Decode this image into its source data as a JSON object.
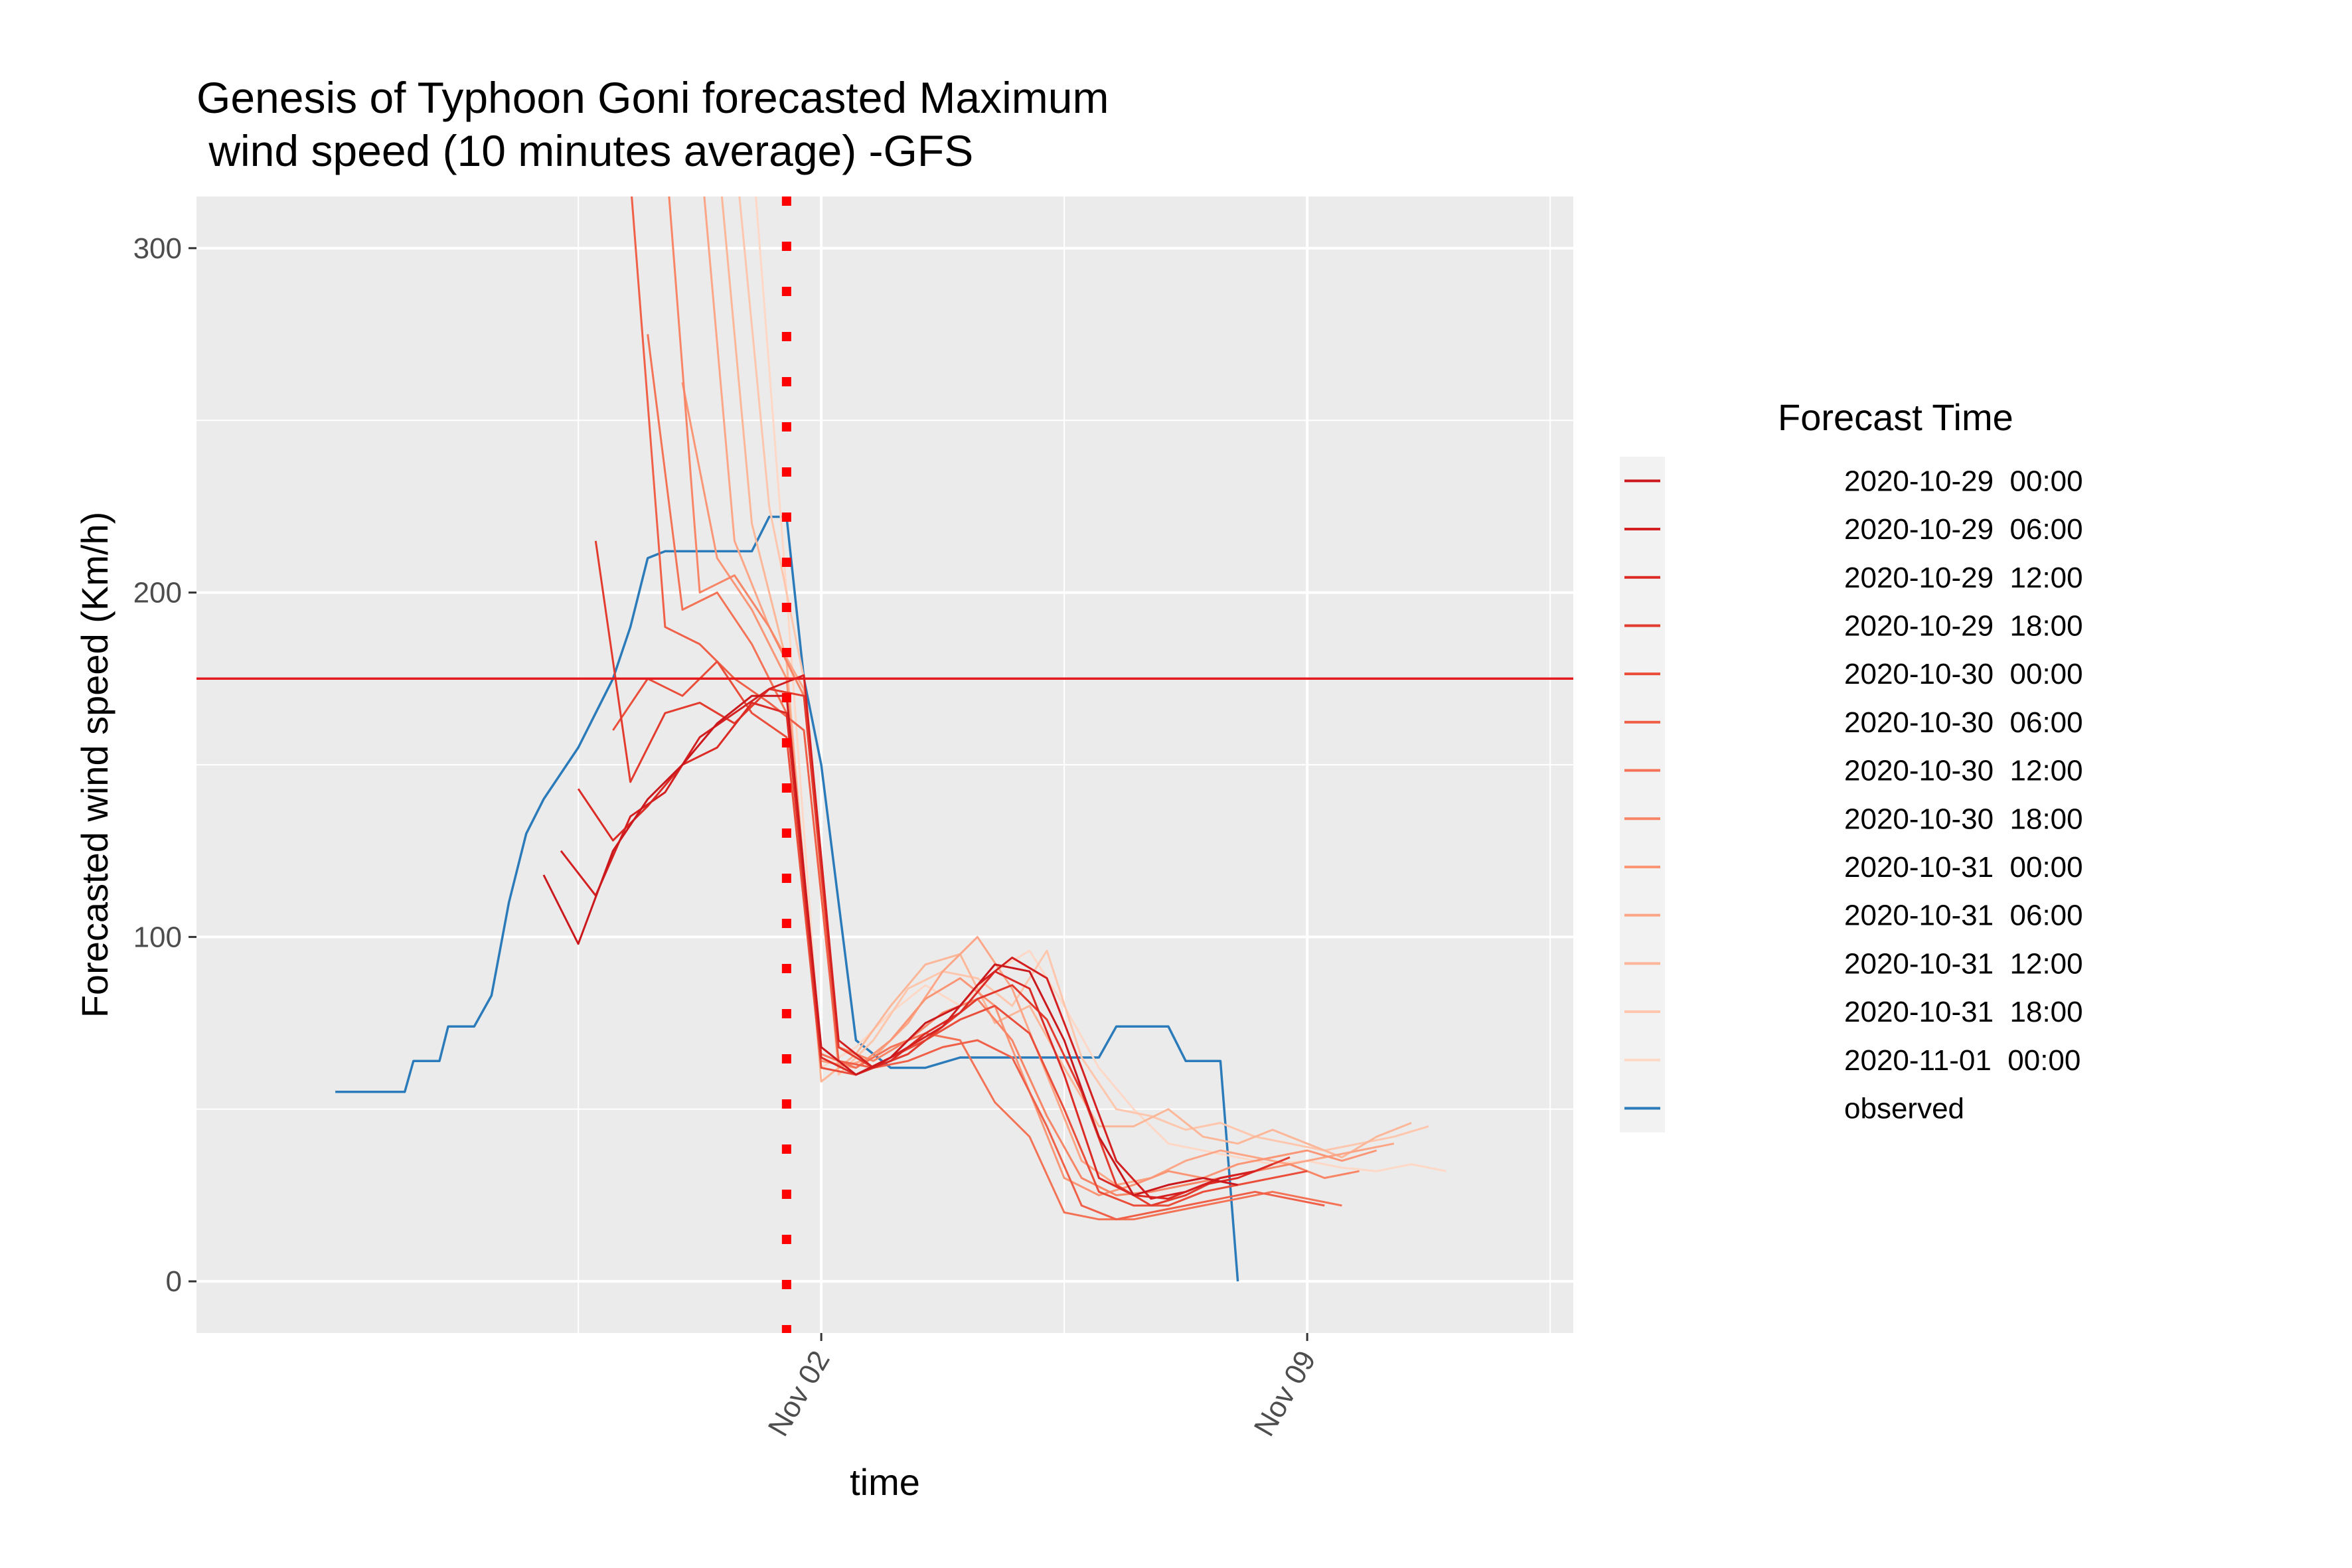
{
  "chart_data": {
    "type": "line",
    "title_line1": "Genesis of Typhoon Goni forecasted Maximum",
    "title_line2": " wind speed (10 minutes average) -GFS",
    "xlabel": "time",
    "ylabel": "Forecasted wind speed (Km/h)",
    "x_range": [
      "2020-10-24T00:00",
      "2020-11-12T20:00"
    ],
    "ylim": [
      -15,
      315
    ],
    "y_ticks": [
      0,
      100,
      200,
      300
    ],
    "x_ticks": [
      {
        "label": "Nov 02",
        "date": "2020-11-02T00:00"
      },
      {
        "label": "Nov 09",
        "date": "2020-11-09T00:00"
      }
    ],
    "grid": true,
    "legend_position": "right",
    "legend_title": "Forecast Time",
    "reference_lines": [
      {
        "orientation": "horizontal",
        "y": 175,
        "color": "#e41a1c",
        "style": "solid"
      },
      {
        "orientation": "vertical",
        "x": "2020-11-01T12:00",
        "color": "#ff0000",
        "style": "dotted"
      }
    ],
    "series": [
      {
        "name": "2020-10-29  00:00",
        "color": "#cb181d",
        "x": [
          "2020-10-29T00:00",
          "2020-10-29T12:00",
          "2020-10-30T00:00",
          "2020-10-30T12:00",
          "2020-10-31T00:00",
          "2020-10-31T12:00",
          "2020-11-01T00:00",
          "2020-11-01T12:00",
          "2020-11-02T00:00",
          "2020-11-02T12:00",
          "2020-11-03T00:00",
          "2020-11-03T12:00",
          "2020-11-04T00:00",
          "2020-11-04T12:00",
          "2020-11-05T00:00",
          "2020-11-05T12:00",
          "2020-11-06T00:00",
          "2020-11-06T12:00",
          "2020-11-07T00:00",
          "2020-11-07T12:00",
          "2020-11-08T00:00"
        ],
        "values": [
          118,
          98,
          125,
          140,
          150,
          162,
          170,
          170,
          68,
          60,
          65,
          75,
          80,
          92,
          90,
          70,
          42,
          25,
          28,
          30,
          28
        ]
      },
      {
        "name": "2020-10-29  06:00",
        "color": "#d42020",
        "x": [
          "2020-10-29T06:00",
          "2020-10-29T18:00",
          "2020-10-30T06:00",
          "2020-10-30T18:00",
          "2020-10-31T06:00",
          "2020-10-31T18:00",
          "2020-11-01T06:00",
          "2020-11-01T18:00",
          "2020-11-02T06:00",
          "2020-11-02T18:00",
          "2020-11-03T06:00",
          "2020-11-03T18:00",
          "2020-11-04T06:00",
          "2020-11-04T18:00",
          "2020-11-05T06:00",
          "2020-11-05T18:00",
          "2020-11-06T06:00",
          "2020-11-06T18:00",
          "2020-11-07T06:00",
          "2020-11-07T18:00",
          "2020-11-08T06:00"
        ],
        "values": [
          125,
          112,
          135,
          142,
          158,
          165,
          172,
          176,
          70,
          62,
          68,
          74,
          86,
          94,
          88,
          62,
          35,
          24,
          26,
          30,
          32
        ]
      },
      {
        "name": "2020-10-29  12:00",
        "color": "#dc2a25",
        "x": [
          "2020-10-29T12:00",
          "2020-10-30T00:00",
          "2020-10-30T12:00",
          "2020-10-31T00:00",
          "2020-10-31T12:00",
          "2020-11-01T00:00",
          "2020-11-01T12:00",
          "2020-11-02T00:00",
          "2020-11-02T12:00",
          "2020-11-03T00:00",
          "2020-11-03T12:00",
          "2020-11-04T00:00",
          "2020-11-04T12:00",
          "2020-11-05T00:00",
          "2020-11-05T12:00",
          "2020-11-06T00:00",
          "2020-11-06T12:00",
          "2020-11-07T00:00",
          "2020-11-07T12:00",
          "2020-11-08T00:00",
          "2020-11-08T12:00"
        ],
        "values": [
          143,
          128,
          138,
          150,
          155,
          168,
          165,
          65,
          60,
          64,
          72,
          78,
          90,
          85,
          60,
          30,
          25,
          24,
          28,
          30,
          34
        ]
      },
      {
        "name": "2020-10-29  18:00",
        "color": "#e33b2e",
        "x": [
          "2020-10-29T18:00",
          "2020-10-30T06:00",
          "2020-10-30T18:00",
          "2020-10-31T06:00",
          "2020-10-31T18:00",
          "2020-11-01T06:00",
          "2020-11-01T18:00",
          "2020-11-02T06:00",
          "2020-11-02T18:00",
          "2020-11-03T06:00",
          "2020-11-03T18:00",
          "2020-11-04T06:00",
          "2020-11-04T18:00",
          "2020-11-05T06:00",
          "2020-11-05T18:00",
          "2020-11-06T06:00",
          "2020-11-06T18:00",
          "2020-11-07T06:00",
          "2020-11-07T18:00",
          "2020-11-08T06:00",
          "2020-11-08T18:00"
        ],
        "values": [
          215,
          145,
          165,
          168,
          162,
          172,
          170,
          68,
          62,
          66,
          74,
          82,
          86,
          76,
          55,
          28,
          22,
          25,
          30,
          32,
          36
        ]
      },
      {
        "name": "2020-10-30  00:00",
        "color": "#ea4e3a",
        "x": [
          "2020-10-30T00:00",
          "2020-10-30T12:00",
          "2020-10-31T00:00",
          "2020-10-31T12:00",
          "2020-11-01T00:00",
          "2020-11-01T12:00",
          "2020-11-02T00:00",
          "2020-11-02T12:00",
          "2020-11-03T00:00",
          "2020-11-03T12:00",
          "2020-11-04T00:00",
          "2020-11-04T12:00",
          "2020-11-05T00:00",
          "2020-11-05T12:00",
          "2020-11-06T00:00",
          "2020-11-06T12:00",
          "2020-11-07T00:00",
          "2020-11-07T12:00",
          "2020-11-08T00:00",
          "2020-11-08T12:00",
          "2020-11-09T00:00"
        ],
        "values": [
          160,
          175,
          170,
          180,
          165,
          158,
          62,
          60,
          65,
          70,
          76,
          80,
          72,
          50,
          26,
          22,
          22,
          26,
          28,
          30,
          32
        ]
      },
      {
        "name": "2020-10-30  06:00",
        "color": "#f06048",
        "x": [
          "2020-10-30T06:00",
          "2020-10-30T18:00",
          "2020-10-31T06:00",
          "2020-10-31T18:00",
          "2020-11-01T06:00",
          "2020-11-01T18:00",
          "2020-11-02T06:00",
          "2020-11-02T18:00",
          "2020-11-03T06:00",
          "2020-11-03T18:00",
          "2020-11-04T06:00",
          "2020-11-04T18:00",
          "2020-11-05T06:00",
          "2020-11-05T18:00",
          "2020-11-06T06:00",
          "2020-11-06T18:00",
          "2020-11-07T06:00",
          "2020-11-07T18:00",
          "2020-11-08T06:00",
          "2020-11-08T18:00",
          "2020-11-09T06:00"
        ],
        "values": [
          320,
          190,
          185,
          175,
          168,
          160,
          64,
          62,
          64,
          68,
          70,
          65,
          45,
          22,
          18,
          20,
          22,
          24,
          26,
          24,
          22
        ]
      },
      {
        "name": "2020-10-30  12:00",
        "color": "#f47356",
        "x": [
          "2020-10-30T12:00",
          "2020-10-31T00:00",
          "2020-10-31T12:00",
          "2020-11-01T00:00",
          "2020-11-01T12:00",
          "2020-11-02T00:00",
          "2020-11-02T12:00",
          "2020-11-03T00:00",
          "2020-11-03T12:00",
          "2020-11-04T00:00",
          "2020-11-04T12:00",
          "2020-11-05T00:00",
          "2020-11-05T12:00",
          "2020-11-06T00:00",
          "2020-11-06T12:00",
          "2020-11-07T00:00",
          "2020-11-07T12:00",
          "2020-11-08T00:00",
          "2020-11-08T12:00",
          "2020-11-09T00:00",
          "2020-11-09T12:00"
        ],
        "values": [
          275,
          195,
          200,
          185,
          165,
          66,
          62,
          68,
          72,
          70,
          52,
          42,
          20,
          18,
          18,
          20,
          22,
          24,
          26,
          24,
          22
        ]
      },
      {
        "name": "2020-10-30  18:00",
        "color": "#f78566",
        "x": [
          "2020-10-30T18:00",
          "2020-10-31T06:00",
          "2020-10-31T18:00",
          "2020-11-01T06:00",
          "2020-11-01T18:00",
          "2020-11-02T06:00",
          "2020-11-02T18:00",
          "2020-11-03T06:00",
          "2020-11-03T18:00",
          "2020-11-04T06:00",
          "2020-11-04T18:00",
          "2020-11-05T06:00",
          "2020-11-05T18:00",
          "2020-11-06T06:00",
          "2020-11-06T18:00",
          "2020-11-07T06:00",
          "2020-11-07T18:00",
          "2020-11-08T06:00",
          "2020-11-08T18:00",
          "2020-11-09T06:00",
          "2020-11-09T18:00"
        ],
        "values": [
          330,
          200,
          205,
          190,
          170,
          68,
          64,
          70,
          78,
          82,
          70,
          48,
          30,
          25,
          26,
          28,
          30,
          32,
          34,
          30,
          32
        ]
      },
      {
        "name": "2020-10-31  00:00",
        "color": "#fa9676",
        "x": [
          "2020-10-31T00:00",
          "2020-10-31T12:00",
          "2020-11-01T00:00",
          "2020-11-01T12:00",
          "2020-11-02T00:00",
          "2020-11-02T12:00",
          "2020-11-03T00:00",
          "2020-11-03T12:00",
          "2020-11-04T00:00",
          "2020-11-04T12:00",
          "2020-11-05T00:00",
          "2020-11-05T12:00",
          "2020-11-06T00:00",
          "2020-11-06T12:00",
          "2020-11-07T00:00",
          "2020-11-07T12:00",
          "2020-11-08T00:00",
          "2020-11-08T12:00",
          "2020-11-09T00:00",
          "2020-11-09T12:00",
          "2020-11-10T00:00"
        ],
        "values": [
          261,
          210,
          195,
          175,
          64,
          62,
          70,
          82,
          88,
          80,
          55,
          30,
          25,
          28,
          32,
          30,
          34,
          36,
          38,
          35,
          38
        ]
      },
      {
        "name": "2020-10-31  06:00",
        "color": "#fca687",
        "x": [
          "2020-10-31T06:00",
          "2020-10-31T18:00",
          "2020-11-01T06:00",
          "2020-11-01T18:00",
          "2020-11-02T06:00",
          "2020-11-02T18:00",
          "2020-11-03T06:00",
          "2020-11-03T18:00",
          "2020-11-04T06:00",
          "2020-11-04T18:00",
          "2020-11-05T06:00",
          "2020-11-05T18:00",
          "2020-11-06T06:00",
          "2020-11-06T18:00",
          "2020-11-07T06:00",
          "2020-11-07T18:00",
          "2020-11-08T06:00",
          "2020-11-08T18:00",
          "2020-11-09T06:00",
          "2020-11-09T18:00",
          "2020-11-10T06:00"
        ],
        "values": [
          330,
          215,
          190,
          172,
          62,
          65,
          75,
          90,
          100,
          85,
          60,
          35,
          28,
          30,
          35,
          38,
          36,
          34,
          36,
          38,
          40
        ]
      },
      {
        "name": "2020-10-31  12:00",
        "color": "#fcb698",
        "x": [
          "2020-10-31T12:00",
          "2020-11-01T00:00",
          "2020-11-01T12:00",
          "2020-11-02T00:00",
          "2020-11-02T12:00",
          "2020-11-03T00:00",
          "2020-11-03T12:00",
          "2020-11-04T00:00",
          "2020-11-04T12:00",
          "2020-11-05T00:00",
          "2020-11-05T12:00",
          "2020-11-06T00:00",
          "2020-11-06T12:00",
          "2020-11-07T00:00",
          "2020-11-07T12:00",
          "2020-11-08T00:00",
          "2020-11-08T12:00",
          "2020-11-09T00:00",
          "2020-11-09T12:00",
          "2020-11-10T00:00",
          "2020-11-10T12:00"
        ],
        "values": [
          330,
          220,
          180,
          58,
          66,
          80,
          92,
          95,
          75,
          80,
          62,
          45,
          45,
          50,
          42,
          40,
          44,
          40,
          36,
          42,
          46
        ]
      },
      {
        "name": "2020-10-31  18:00",
        "color": "#fdc6ad",
        "x": [
          "2020-10-31T18:00",
          "2020-11-01T06:00",
          "2020-11-01T18:00",
          "2020-11-02T06:00",
          "2020-11-02T18:00",
          "2020-11-03T06:00",
          "2020-11-03T18:00",
          "2020-11-04T06:00",
          "2020-11-04T18:00",
          "2020-11-05T06:00",
          "2020-11-05T18:00",
          "2020-11-06T06:00",
          "2020-11-06T18:00",
          "2020-11-07T06:00",
          "2020-11-07T18:00",
          "2020-11-08T06:00",
          "2020-11-08T18:00",
          "2020-11-09T06:00",
          "2020-11-09T18:00",
          "2020-11-10T06:00",
          "2020-11-10T18:00"
        ],
        "values": [
          330,
          225,
          175,
          60,
          70,
          85,
          90,
          88,
          80,
          96,
          65,
          50,
          48,
          44,
          46,
          42,
          40,
          38,
          40,
          42,
          45
        ]
      },
      {
        "name": "2020-11-01  00:00",
        "color": "#fed8c6",
        "x": [
          "2020-11-01T00:00",
          "2020-11-01T12:00",
          "2020-11-02T00:00",
          "2020-11-02T12:00",
          "2020-11-03T00:00",
          "2020-11-03T12:00",
          "2020-11-04T00:00",
          "2020-11-04T12:00",
          "2020-11-05T00:00",
          "2020-11-05T12:00",
          "2020-11-06T00:00",
          "2020-11-06T12:00",
          "2020-11-07T00:00",
          "2020-11-07T12:00",
          "2020-11-08T00:00",
          "2020-11-08T12:00",
          "2020-11-09T00:00",
          "2020-11-09T12:00",
          "2020-11-10T00:00",
          "2020-11-10T12:00",
          "2020-11-11T00:00"
        ],
        "values": [
          330,
          200,
          62,
          68,
          78,
          86,
          80,
          90,
          96,
          80,
          62,
          50,
          40,
          38,
          36,
          34,
          35,
          33,
          32,
          34,
          32
        ]
      },
      {
        "name": "observed",
        "color": "#2b7bba",
        "x": [
          "2020-10-26T00:00",
          "2020-10-27T00:00",
          "2020-10-27T03:00",
          "2020-10-27T12:00",
          "2020-10-27T15:00",
          "2020-10-28T00:00",
          "2020-10-28T06:00",
          "2020-10-28T12:00",
          "2020-10-28T18:00",
          "2020-10-29T00:00",
          "2020-10-29T12:00",
          "2020-10-30T00:00",
          "2020-10-30T06:00",
          "2020-10-30T12:00",
          "2020-10-30T18:00",
          "2020-10-31T00:00",
          "2020-10-31T06:00",
          "2020-10-31T12:00",
          "2020-10-31T18:00",
          "2020-11-01T00:00",
          "2020-11-01T06:00",
          "2020-11-01T12:00",
          "2020-11-01T18:00",
          "2020-11-02T00:00",
          "2020-11-02T12:00",
          "2020-11-03T00:00",
          "2020-11-03T12:00",
          "2020-11-04T00:00",
          "2020-11-04T12:00",
          "2020-11-05T00:00",
          "2020-11-05T12:00",
          "2020-11-06T00:00",
          "2020-11-06T06:00",
          "2020-11-06T12:00",
          "2020-11-06T18:00",
          "2020-11-07T00:00",
          "2020-11-07T06:00",
          "2020-11-07T12:00",
          "2020-11-07T18:00",
          "2020-11-08T00:00"
        ],
        "values": [
          55,
          55,
          64,
          64,
          74,
          74,
          83,
          110,
          130,
          140,
          155,
          175,
          190,
          210,
          212,
          212,
          212,
          212,
          212,
          212,
          222,
          222,
          175,
          150,
          70,
          62,
          62,
          65,
          65,
          65,
          65,
          65,
          74,
          74,
          74,
          74,
          64,
          64,
          64,
          0
        ]
      }
    ]
  }
}
